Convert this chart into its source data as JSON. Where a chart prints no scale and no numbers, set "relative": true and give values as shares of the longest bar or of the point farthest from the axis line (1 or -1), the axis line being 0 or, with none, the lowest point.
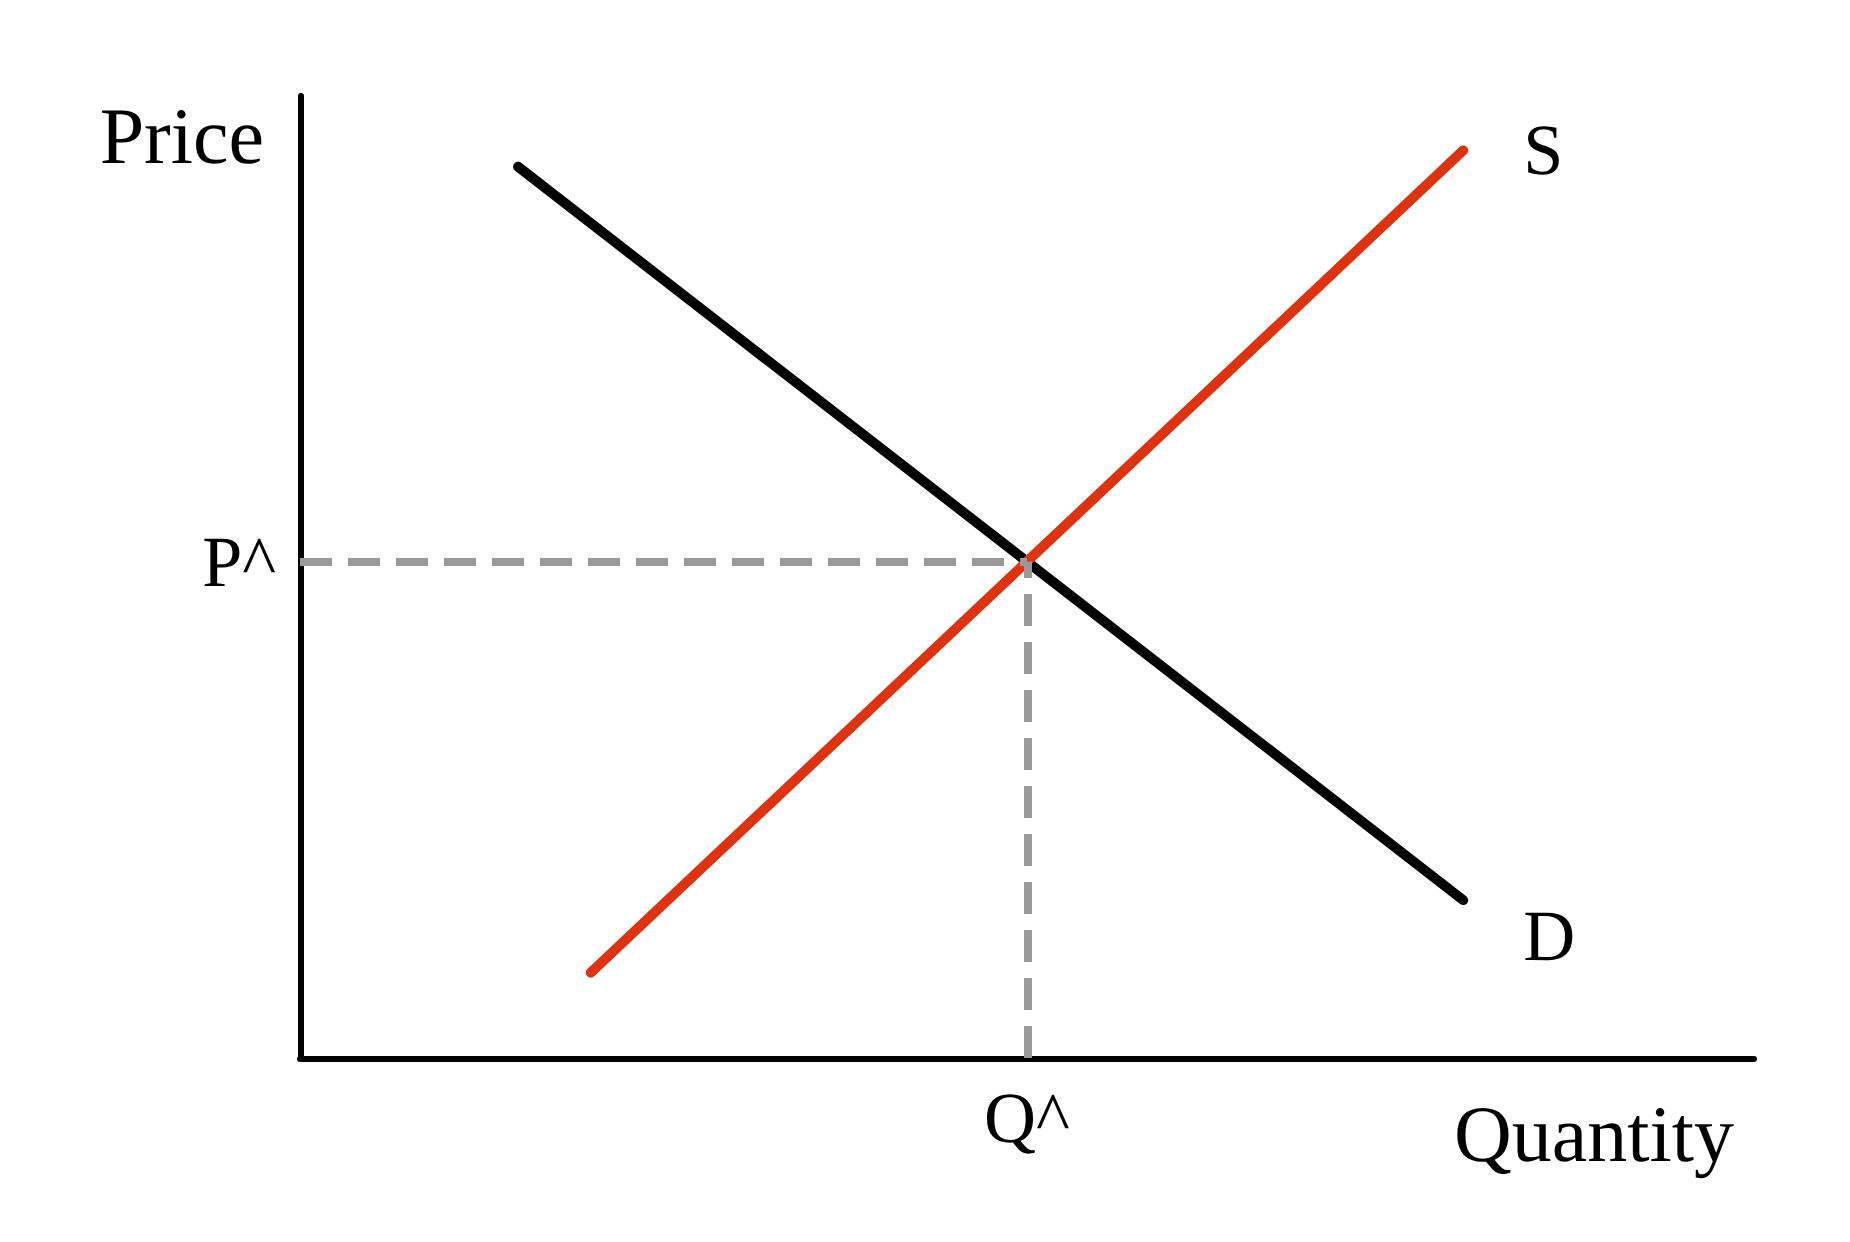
{
  "chart_data": {
    "type": "line",
    "relative": true,
    "xlabel": "Quantity",
    "ylabel": "Price",
    "categories": [
      null,
      null,
      null,
      null,
      null,
      null,
      null,
      null,
      null,
      null,
      null,
      null,
      null,
      null,
      null,
      null,
      null,
      null,
      null,
      null,
      null
    ],
    "series": [
      {
        "name": "D",
        "color": "#000000",
        "values": [
          null,
          null,
          null,
          0.982,
          null,
          null,
          null,
          null,
          null,
          null,
          null,
          null,
          null,
          null,
          null,
          null,
          0.174,
          null,
          null,
          null,
          null
        ]
      },
      {
        "name": "S",
        "color": "#dd3311",
        "values": [
          null,
          null,
          null,
          null,
          0.094,
          null,
          null,
          null,
          null,
          null,
          null,
          null,
          null,
          null,
          null,
          null,
          1,
          null,
          null,
          null,
          null
        ]
      }
    ],
    "ref_lines": [
      {
        "axis": "y",
        "value": 0.547,
        "label": "P^",
        "color": "#999999",
        "line_style": "dashed"
      },
      {
        "axis": "x",
        "label": "Q^",
        "color": "#999999",
        "line_style": "dashed"
      }
    ],
    "marker": "none",
    "line_style": "solid",
    "grid": false,
    "legend": false
  }
}
